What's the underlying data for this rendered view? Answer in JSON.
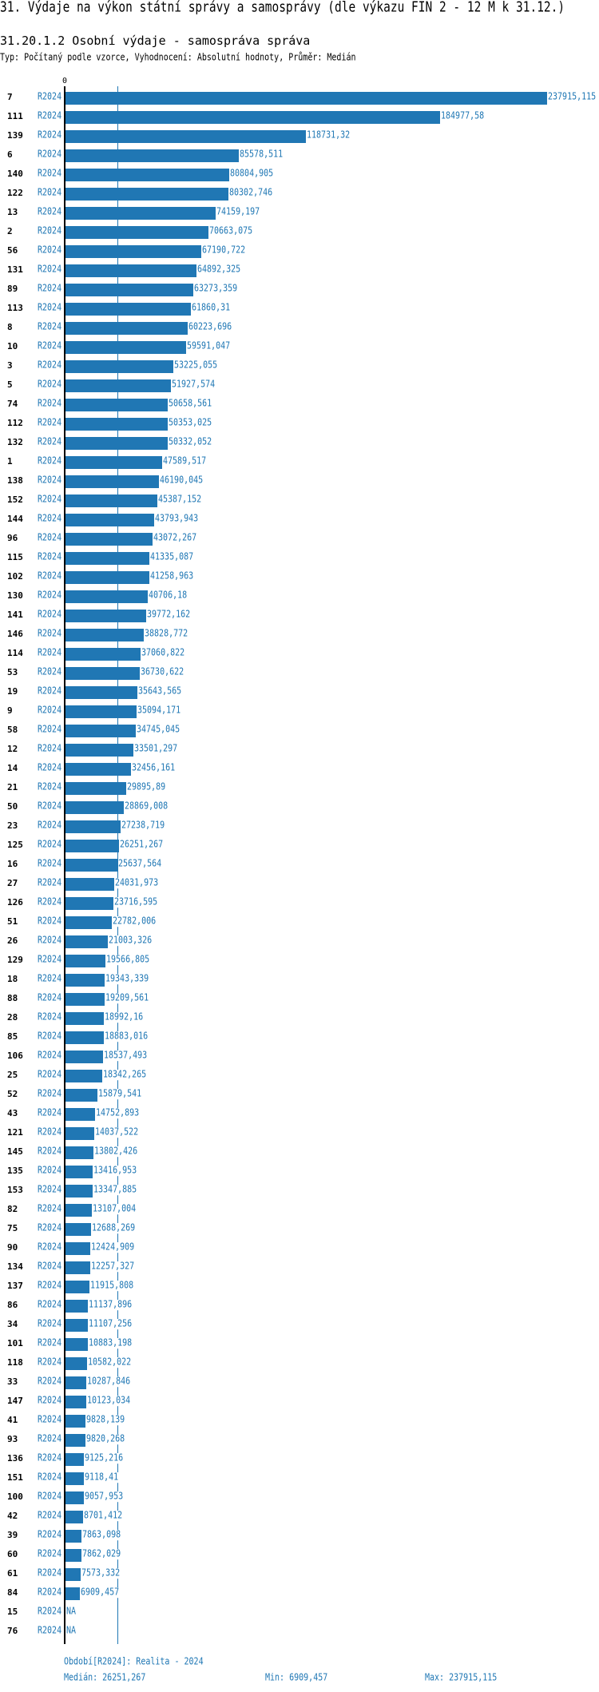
{
  "title": "31. Výdaje na výkon státní správy a samosprávy (dle výkazu FIN 2 - 12 M k 31.12.)",
  "subtitle": "31.20.1.2 Osobní výdaje - samospráva správa",
  "meta": "Typ: Počítaný podle vzorce, Vyhodnocení: Absolutní hodnoty, Průměr: Medián",
  "colors": {
    "bar": "#2077b4",
    "label": "#1f77b4",
    "axis": "#000000"
  },
  "chart_data": {
    "type": "bar",
    "orientation": "horizontal",
    "axis_zero_label": "0",
    "xlim": [
      0,
      237915.115
    ],
    "reference_line": {
      "label": "Medián",
      "value": 26251.267
    },
    "rows": [
      {
        "id": "7",
        "period": "R2024",
        "label": "237915,115"
      },
      {
        "id": "111",
        "period": "R2024",
        "label": "184977,58"
      },
      {
        "id": "139",
        "period": "R2024",
        "label": "118731,32"
      },
      {
        "id": "6",
        "period": "R2024",
        "label": "85578,511"
      },
      {
        "id": "140",
        "period": "R2024",
        "label": "80804,905"
      },
      {
        "id": "122",
        "period": "R2024",
        "label": "80302,746"
      },
      {
        "id": "13",
        "period": "R2024",
        "label": "74159,197"
      },
      {
        "id": "2",
        "period": "R2024",
        "label": "70663,075"
      },
      {
        "id": "56",
        "period": "R2024",
        "label": "67190,722"
      },
      {
        "id": "131",
        "period": "R2024",
        "label": "64892,325"
      },
      {
        "id": "89",
        "period": "R2024",
        "label": "63273,359"
      },
      {
        "id": "113",
        "period": "R2024",
        "label": "61860,31"
      },
      {
        "id": "8",
        "period": "R2024",
        "label": "60223,696"
      },
      {
        "id": "10",
        "period": "R2024",
        "label": "59591,047"
      },
      {
        "id": "3",
        "period": "R2024",
        "label": "53225,055"
      },
      {
        "id": "5",
        "period": "R2024",
        "label": "51927,574"
      },
      {
        "id": "74",
        "period": "R2024",
        "label": "50658,561"
      },
      {
        "id": "112",
        "period": "R2024",
        "label": "50353,025"
      },
      {
        "id": "132",
        "period": "R2024",
        "label": "50332,052"
      },
      {
        "id": "1",
        "period": "R2024",
        "label": "47589,517"
      },
      {
        "id": "138",
        "period": "R2024",
        "label": "46190,045"
      },
      {
        "id": "152",
        "period": "R2024",
        "label": "45387,152"
      },
      {
        "id": "144",
        "period": "R2024",
        "label": "43793,943"
      },
      {
        "id": "96",
        "period": "R2024",
        "label": "43072,267"
      },
      {
        "id": "115",
        "period": "R2024",
        "label": "41335,087"
      },
      {
        "id": "102",
        "period": "R2024",
        "label": "41258,963"
      },
      {
        "id": "130",
        "period": "R2024",
        "label": "40706,18"
      },
      {
        "id": "141",
        "period": "R2024",
        "label": "39772,162"
      },
      {
        "id": "146",
        "period": "R2024",
        "label": "38828,772"
      },
      {
        "id": "114",
        "period": "R2024",
        "label": "37060,822"
      },
      {
        "id": "53",
        "period": "R2024",
        "label": "36730,622"
      },
      {
        "id": "19",
        "period": "R2024",
        "label": "35643,565"
      },
      {
        "id": "9",
        "period": "R2024",
        "label": "35094,171"
      },
      {
        "id": "58",
        "period": "R2024",
        "label": "34745,045"
      },
      {
        "id": "12",
        "period": "R2024",
        "label": "33501,297"
      },
      {
        "id": "14",
        "period": "R2024",
        "label": "32456,161"
      },
      {
        "id": "21",
        "period": "R2024",
        "label": "29895,89"
      },
      {
        "id": "50",
        "period": "R2024",
        "label": "28869,008"
      },
      {
        "id": "23",
        "period": "R2024",
        "label": "27238,719"
      },
      {
        "id": "125",
        "period": "R2024",
        "label": "26251,267"
      },
      {
        "id": "16",
        "period": "R2024",
        "label": "25637,564"
      },
      {
        "id": "27",
        "period": "R2024",
        "label": "24031,973"
      },
      {
        "id": "126",
        "period": "R2024",
        "label": "23716,595"
      },
      {
        "id": "51",
        "period": "R2024",
        "label": "22782,006"
      },
      {
        "id": "26",
        "period": "R2024",
        "label": "21003,326"
      },
      {
        "id": "129",
        "period": "R2024",
        "label": "19566,805"
      },
      {
        "id": "18",
        "period": "R2024",
        "label": "19343,339"
      },
      {
        "id": "88",
        "period": "R2024",
        "label": "19209,561"
      },
      {
        "id": "28",
        "period": "R2024",
        "label": "18992,16"
      },
      {
        "id": "85",
        "period": "R2024",
        "label": "18883,016"
      },
      {
        "id": "106",
        "period": "R2024",
        "label": "18537,493"
      },
      {
        "id": "25",
        "period": "R2024",
        "label": "18342,265"
      },
      {
        "id": "52",
        "period": "R2024",
        "label": "15879,541"
      },
      {
        "id": "43",
        "period": "R2024",
        "label": "14752,893"
      },
      {
        "id": "121",
        "period": "R2024",
        "label": "14037,522"
      },
      {
        "id": "145",
        "period": "R2024",
        "label": "13802,426"
      },
      {
        "id": "135",
        "period": "R2024",
        "label": "13416,953"
      },
      {
        "id": "153",
        "period": "R2024",
        "label": "13347,885"
      },
      {
        "id": "82",
        "period": "R2024",
        "label": "13107,004"
      },
      {
        "id": "75",
        "period": "R2024",
        "label": "12688,269"
      },
      {
        "id": "90",
        "period": "R2024",
        "label": "12424,909"
      },
      {
        "id": "134",
        "period": "R2024",
        "label": "12257,327"
      },
      {
        "id": "137",
        "period": "R2024",
        "label": "11915,808"
      },
      {
        "id": "86",
        "period": "R2024",
        "label": "11137,896"
      },
      {
        "id": "34",
        "period": "R2024",
        "label": "11107,256"
      },
      {
        "id": "101",
        "period": "R2024",
        "label": "10883,198"
      },
      {
        "id": "118",
        "period": "R2024",
        "label": "10582,022"
      },
      {
        "id": "33",
        "period": "R2024",
        "label": "10287,846"
      },
      {
        "id": "147",
        "period": "R2024",
        "label": "10123,034"
      },
      {
        "id": "41",
        "period": "R2024",
        "label": "9828,139"
      },
      {
        "id": "93",
        "period": "R2024",
        "label": "9820,268"
      },
      {
        "id": "136",
        "period": "R2024",
        "label": "9125,216"
      },
      {
        "id": "151",
        "period": "R2024",
        "label": "9118,41"
      },
      {
        "id": "100",
        "period": "R2024",
        "label": "9057,953"
      },
      {
        "id": "42",
        "period": "R2024",
        "label": "8701,412"
      },
      {
        "id": "39",
        "period": "R2024",
        "label": "7863,098"
      },
      {
        "id": "60",
        "period": "R2024",
        "label": "7862,029"
      },
      {
        "id": "61",
        "period": "R2024",
        "label": "7573,332"
      },
      {
        "id": "84",
        "period": "R2024",
        "label": "6909,457"
      },
      {
        "id": "15",
        "period": "R2024",
        "label": "NA"
      },
      {
        "id": "76",
        "period": "R2024",
        "label": "NA"
      }
    ]
  },
  "footer": {
    "period": "Období[R2024]: Realita - 2024",
    "median": "Medián: 26251,267",
    "min": "Min: 6909,457",
    "max": "Max: 237915,115"
  }
}
